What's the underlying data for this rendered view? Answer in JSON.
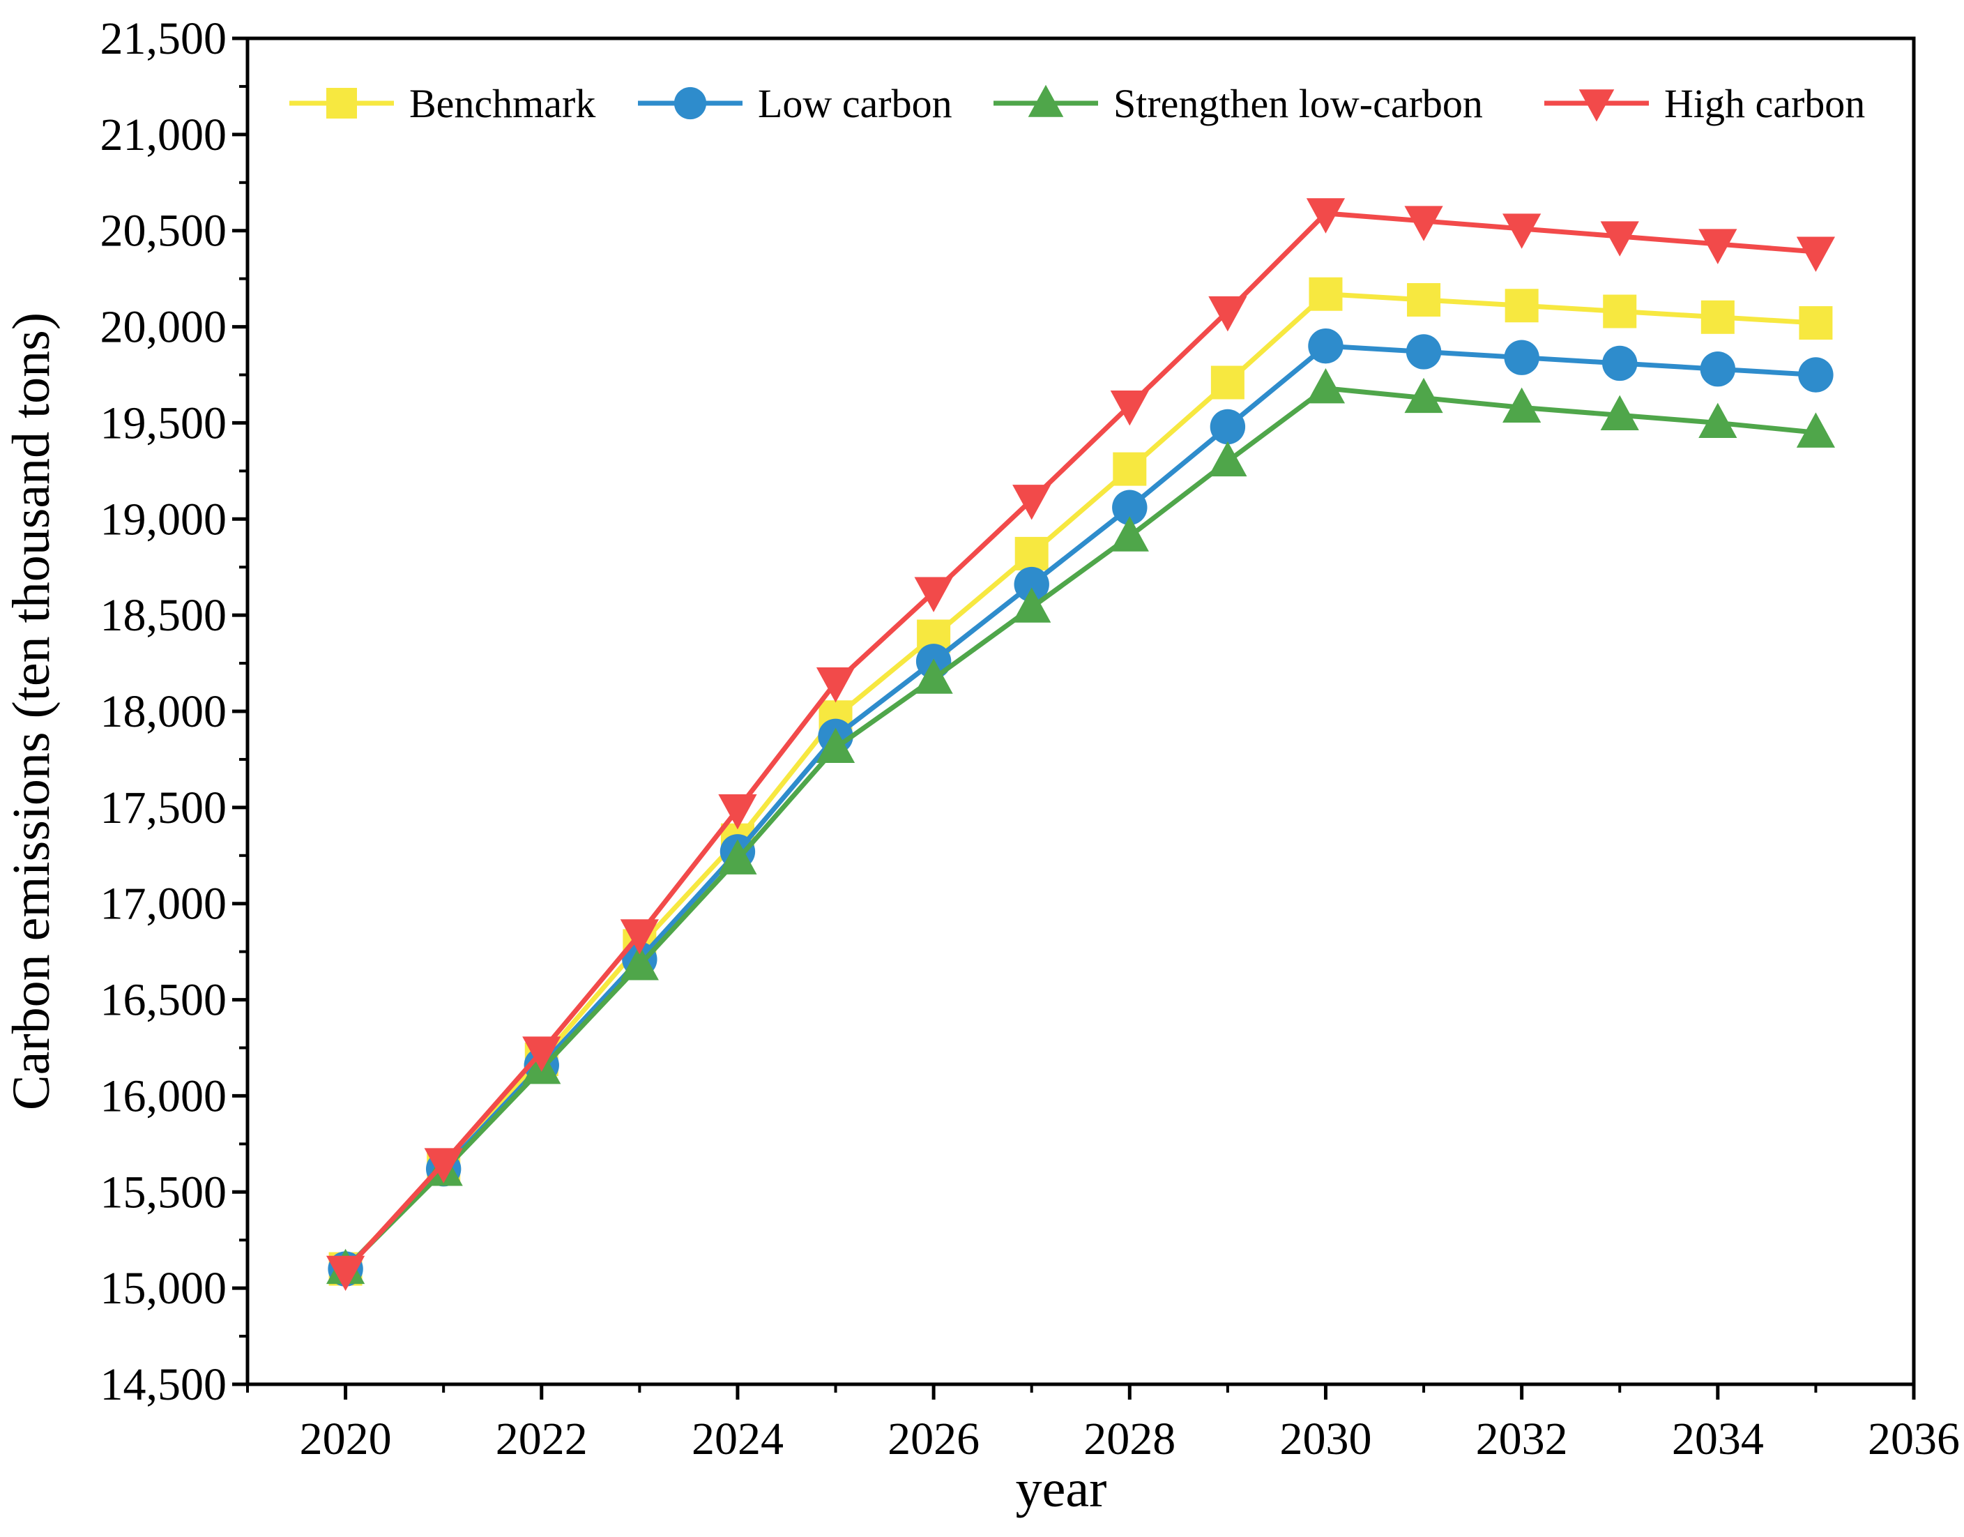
{
  "chart_data": {
    "type": "line",
    "title": "",
    "xlabel": "year",
    "ylabel": "Carbon emissions (ten thousand tons)",
    "xlim": [
      2019,
      2036
    ],
    "ylim": [
      14500,
      21500
    ],
    "x_ticks": [
      2020,
      2022,
      2024,
      2026,
      2028,
      2030,
      2032,
      2034,
      2036
    ],
    "x_tick_labels": [
      "2020",
      "2022",
      "2024",
      "2026",
      "2028",
      "2030",
      "2032",
      "2034",
      "2036"
    ],
    "y_ticks": [
      14500,
      15000,
      15500,
      16000,
      16500,
      17000,
      17500,
      18000,
      18500,
      19000,
      19500,
      20000,
      20500,
      21000,
      21500
    ],
    "y_tick_labels": [
      "14,500",
      "15,000",
      "15,500",
      "16,000",
      "16,500",
      "17,000",
      "17,500",
      "18,000",
      "18,500",
      "19,000",
      "19,500",
      "20,000",
      "20,500",
      "21,000",
      "21,500"
    ],
    "grid": false,
    "legend_position": "top",
    "x": [
      2020,
      2021,
      2022,
      2023,
      2024,
      2025,
      2026,
      2027,
      2028,
      2029,
      2030,
      2031,
      2032,
      2033,
      2034,
      2035
    ],
    "series": [
      {
        "name": "Benchmark",
        "color": "#f7e840",
        "marker": "square",
        "values": [
          15100,
          15630,
          16190,
          16780,
          17330,
          17970,
          18390,
          18820,
          19260,
          19710,
          20170,
          20140,
          20110,
          20080,
          20050,
          20020
        ]
      },
      {
        "name": "Low carbon",
        "color": "#2e8ccc",
        "marker": "circle",
        "values": [
          15100,
          15620,
          16160,
          16710,
          17270,
          17870,
          18260,
          18660,
          19060,
          19480,
          19900,
          19870,
          19840,
          19810,
          19780,
          19750
        ]
      },
      {
        "name": "Strengthen low-carbon",
        "color": "#4fa64a",
        "marker": "triangle-up",
        "values": [
          15100,
          15610,
          16140,
          16680,
          17230,
          17810,
          18170,
          18540,
          18910,
          19300,
          19680,
          19630,
          19580,
          19540,
          19500,
          19450
        ]
      },
      {
        "name": "High carbon",
        "color": "#f24a4a",
        "marker": "triangle-down",
        "values": [
          15090,
          15650,
          16230,
          16840,
          17490,
          18150,
          18620,
          19100,
          19590,
          20080,
          20590,
          20550,
          20510,
          20470,
          20430,
          20390
        ]
      }
    ]
  }
}
